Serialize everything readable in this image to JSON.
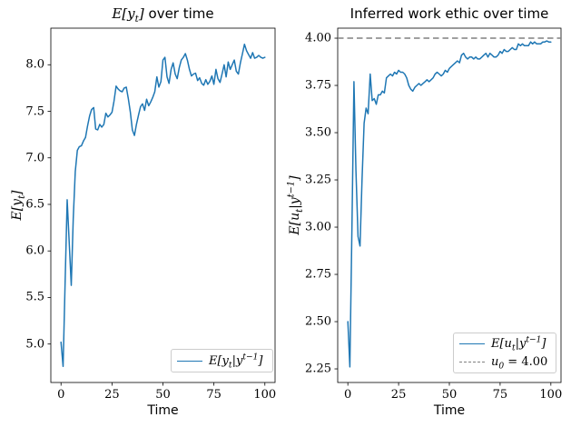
{
  "figure": {
    "background": "#ffffff",
    "text_color": "#000000",
    "line_color": "#1f77b4",
    "reference_line_color": "#808080",
    "legend_border_color": "#cccccc"
  },
  "math": {
    "E_yt": {
      "p1": "E[y",
      "sub": "t",
      "p2": "]"
    },
    "E_yt_cond": {
      "p1": "E[y",
      "sub": "t",
      "p2": "|y",
      "sup": "t−1",
      "p3": "]"
    },
    "E_ut_cond": {
      "p1": "E[u",
      "sub": "t",
      "p2": "|y",
      "sup": "t−1",
      "p3": "]"
    },
    "u0_eq": {
      "p1": "u",
      "sub": "0",
      "p2": " = 4.00"
    }
  },
  "chart_data": [
    {
      "id": "expected-output",
      "type": "line",
      "title": "E[y_t] over time",
      "title_rest": " over time",
      "xlabel": "Time",
      "ylabel": "E[y_t]",
      "grid": false,
      "legend_position": "lower right",
      "x_start": 0,
      "x_step": 1,
      "xlim": [
        -5,
        105
      ],
      "ylim": [
        4.587,
        8.393
      ],
      "xticks": [
        0,
        25,
        50,
        75,
        100
      ],
      "xtick_labels": [
        "0",
        "25",
        "50",
        "75",
        "100"
      ],
      "yticks": [
        5.0,
        5.5,
        6.0,
        6.5,
        7.0,
        7.5,
        8.0
      ],
      "ytick_labels": [
        "5.0",
        "5.5",
        "6.0",
        "6.5",
        "7.0",
        "7.5",
        "8.0"
      ],
      "series": [
        {
          "name": "E[y_t | y^(t-1)]",
          "color": "#1f77b4",
          "values": [
            5.02,
            4.76,
            5.65,
            6.55,
            6.1,
            5.63,
            6.35,
            6.85,
            7.08,
            7.12,
            7.13,
            7.18,
            7.22,
            7.34,
            7.45,
            7.52,
            7.54,
            7.31,
            7.3,
            7.36,
            7.33,
            7.36,
            7.48,
            7.44,
            7.46,
            7.49,
            7.61,
            7.77,
            7.74,
            7.72,
            7.71,
            7.75,
            7.76,
            7.64,
            7.49,
            7.3,
            7.24,
            7.36,
            7.46,
            7.55,
            7.58,
            7.51,
            7.63,
            7.56,
            7.6,
            7.65,
            7.71,
            7.87,
            7.76,
            7.82,
            8.05,
            8.08,
            7.87,
            7.8,
            7.95,
            8.02,
            7.9,
            7.85,
            7.97,
            8.05,
            8.08,
            8.12,
            8.05,
            7.95,
            7.88,
            7.9,
            7.91,
            7.83,
            7.86,
            7.8,
            7.78,
            7.84,
            7.79,
            7.82,
            7.88,
            7.79,
            7.95,
            7.85,
            7.81,
            7.9,
            8.0,
            7.87,
            8.03,
            7.95,
            8.0,
            8.05,
            7.93,
            7.9,
            8.02,
            8.12,
            8.22,
            8.15,
            8.11,
            8.07,
            8.13,
            8.07,
            8.08,
            8.1,
            8.08,
            8.07,
            8.08
          ]
        }
      ]
    },
    {
      "id": "work-ethic",
      "type": "line",
      "title": "Inferred work ethic over time",
      "xlabel": "Time",
      "ylabel": "E[u_t | y^(t-1)]",
      "grid": false,
      "legend_position": "lower right",
      "x_start": 0,
      "x_step": 1,
      "xlim": [
        -5,
        105
      ],
      "ylim": [
        2.178,
        4.053
      ],
      "xticks": [
        0,
        25,
        50,
        75,
        100
      ],
      "xtick_labels": [
        "0",
        "25",
        "50",
        "75",
        "100"
      ],
      "yticks": [
        2.25,
        2.5,
        2.75,
        3.0,
        3.25,
        3.5,
        3.75,
        4.0
      ],
      "ytick_labels": [
        "2.25",
        "2.50",
        "2.75",
        "3.00",
        "3.25",
        "3.50",
        "3.75",
        "4.00"
      ],
      "reference_line": {
        "y": 4.0,
        "label": "u_0 = 4.00",
        "color": "#808080",
        "style": "dashed"
      },
      "series": [
        {
          "name": "E[u_t | y^(t-1)]",
          "color": "#1f77b4",
          "values": [
            2.5,
            2.26,
            3.0,
            3.77,
            3.3,
            2.95,
            2.9,
            3.25,
            3.55,
            3.63,
            3.6,
            3.81,
            3.67,
            3.68,
            3.65,
            3.7,
            3.7,
            3.72,
            3.71,
            3.79,
            3.8,
            3.81,
            3.8,
            3.82,
            3.81,
            3.83,
            3.82,
            3.82,
            3.81,
            3.79,
            3.75,
            3.73,
            3.72,
            3.74,
            3.75,
            3.76,
            3.75,
            3.76,
            3.77,
            3.78,
            3.77,
            3.78,
            3.79,
            3.81,
            3.82,
            3.81,
            3.8,
            3.81,
            3.83,
            3.82,
            3.84,
            3.85,
            3.86,
            3.87,
            3.88,
            3.87,
            3.91,
            3.92,
            3.9,
            3.89,
            3.9,
            3.9,
            3.89,
            3.9,
            3.89,
            3.89,
            3.9,
            3.91,
            3.92,
            3.9,
            3.92,
            3.91,
            3.9,
            3.9,
            3.91,
            3.93,
            3.92,
            3.94,
            3.93,
            3.93,
            3.94,
            3.95,
            3.94,
            3.94,
            3.97,
            3.96,
            3.97,
            3.96,
            3.96,
            3.96,
            3.98,
            3.97,
            3.98,
            3.97,
            3.97,
            3.97,
            3.98,
            3.98,
            3.985,
            3.98,
            3.98
          ]
        }
      ]
    }
  ]
}
